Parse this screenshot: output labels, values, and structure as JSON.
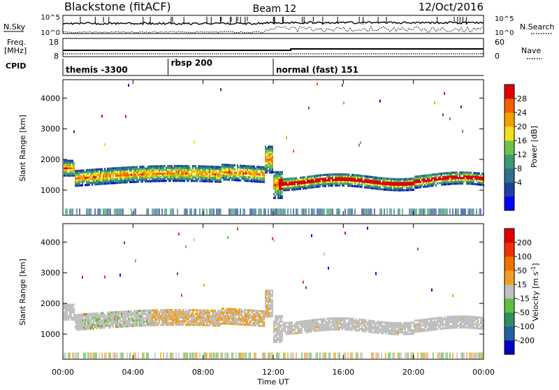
{
  "header": {
    "station": "Blackstone (fitACF)",
    "beam": "Beam 12",
    "date": "12/Oct/2016"
  },
  "chart_data": [
    {
      "type": "line",
      "panel": "noise",
      "left_label": "N.Sky",
      "right_label": "N.Search",
      "left_ticks": [
        "10^5",
        "10^0"
      ],
      "right_ticks": [
        "10^5",
        "10^0"
      ]
    },
    {
      "type": "line",
      "panel": "frequency",
      "left_label_top": "Freq.",
      "left_label_bottom": "[MHz]",
      "left_ticks": [
        "18",
        "8"
      ],
      "right_label": "Nave",
      "right_ticks": [
        "60",
        "0"
      ]
    },
    {
      "type": "table",
      "panel": "cpid",
      "label": "CPID",
      "segments": [
        {
          "start_hour": 0,
          "end_hour": 6,
          "label": "themis -3300"
        },
        {
          "start_hour": 6,
          "end_hour": 12,
          "label": "rbsp 200"
        },
        {
          "start_hour": 12,
          "end_hour": 24,
          "label": "normal (fast) 151"
        }
      ]
    },
    {
      "type": "heatmap",
      "panel": "power",
      "ylabel": "Slant Range [km]",
      "yticks": [
        "4000",
        "3000",
        "2000",
        "1000"
      ],
      "ylim": [
        180,
        4600
      ],
      "colorbar_label": "Power [dB]",
      "colorbar_ticks": [
        "28",
        "24",
        "20",
        "16",
        "12",
        "8",
        "4"
      ],
      "colors": [
        "#0000ff",
        "#1f3fa0",
        "#2f6f8f",
        "#3a9a78",
        "#6fc14a",
        "#f0e020",
        "#f5a000",
        "#f06000",
        "#e00000"
      ]
    },
    {
      "type": "heatmap",
      "panel": "velocity",
      "ylabel": "Slant Range [km]",
      "yticks": [
        "4000",
        "3000",
        "2000",
        "1000"
      ],
      "ylim": [
        180,
        4600
      ],
      "colorbar_label": "Velocity [m s^-1]",
      "colorbar_ticks": [
        "200",
        "100",
        "50",
        "15",
        "-15",
        "-50",
        "-100",
        "-200"
      ],
      "colors": [
        "#0000c0",
        "#1f60a0",
        "#2f8f60",
        "#60c040",
        "#c0c0c0",
        "#f0a020",
        "#f07000",
        "#f03000",
        "#e00000"
      ]
    }
  ],
  "xaxis": {
    "label": "Time UT",
    "ticks": [
      "00:00",
      "04:00",
      "08:00",
      "12:00",
      "16:00",
      "20:00",
      "00:00"
    ],
    "range_hours": [
      0,
      24
    ]
  }
}
